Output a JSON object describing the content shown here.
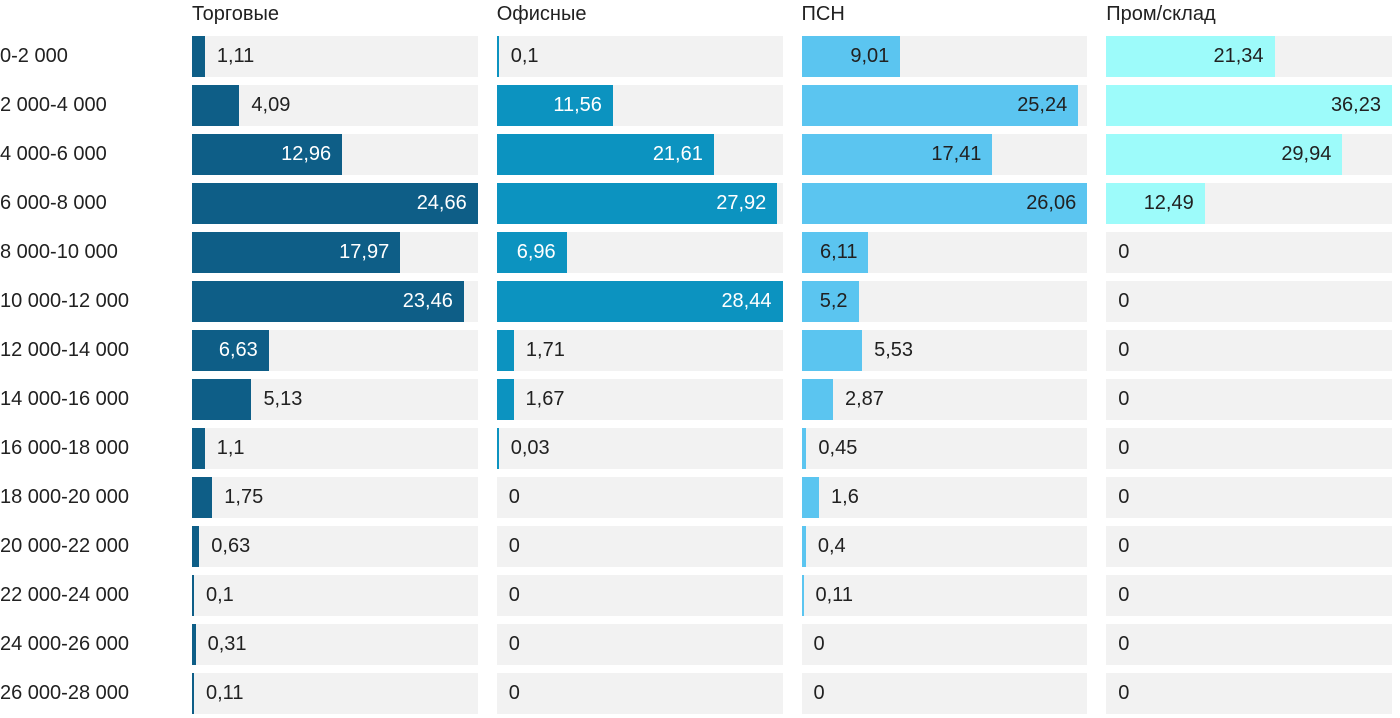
{
  "chart_data": {
    "type": "bar",
    "orientation": "horizontal",
    "title": "",
    "xlabel": "",
    "ylabel": "",
    "value_labels": "on",
    "decimal_separator": ",",
    "x_scaling": "each column scaled independently to its own max value",
    "grid": false,
    "legend_position": "column-headers-top",
    "track_color": "#f2f2f2",
    "background_color": "#ffffff",
    "text_color": "#212121",
    "categories": [
      "0-2 000",
      "2 000-4 000",
      "4 000-6 000",
      "6 000-8 000",
      "8 000-10 000",
      "10 000-12 000",
      "12 000-14 000",
      "14 000-16 000",
      "16 000-18 000",
      "18 000-20 000",
      "20 000-22 000",
      "22 000-24 000",
      "24 000-26 000",
      "26 000-28 000"
    ],
    "series": [
      {
        "name": "Торговые",
        "color": "#0e5e87",
        "label_color_inside": "#ffffff",
        "values": [
          1.11,
          4.09,
          12.96,
          24.66,
          17.97,
          23.46,
          6.63,
          5.13,
          1.1,
          1.75,
          0.63,
          0.1,
          0.31,
          0.11
        ],
        "labels": [
          "1,11",
          "4,09",
          "12,96",
          "24,66",
          "17,97",
          "23,46",
          "6,63",
          "5,13",
          "1,1",
          "1,75",
          "0,63",
          "0,1",
          "0,31",
          "0,11"
        ]
      },
      {
        "name": "Офисные",
        "color": "#0c93c0",
        "label_color_inside": "#ffffff",
        "values": [
          0.1,
          11.56,
          21.61,
          27.92,
          6.96,
          28.44,
          1.71,
          1.67,
          0.03,
          0,
          0,
          0,
          0,
          0
        ],
        "labels": [
          "0,1",
          "11,56",
          "21,61",
          "27,92",
          "6,96",
          "28,44",
          "1,71",
          "1,67",
          "0,03",
          "0",
          "0",
          "0",
          "0",
          "0"
        ]
      },
      {
        "name": "ПСН",
        "color": "#5bc5f0",
        "label_color_inside": "#212121",
        "values": [
          9.01,
          25.24,
          17.41,
          26.06,
          6.11,
          5.2,
          5.53,
          2.87,
          0.45,
          1.6,
          0.4,
          0.11,
          0,
          0
        ],
        "labels": [
          "9,01",
          "25,24",
          "17,41",
          "26,06",
          "6,11",
          "5,2",
          "5,53",
          "2,87",
          "0,45",
          "1,6",
          "0,4",
          "0,11",
          "0",
          "0"
        ]
      },
      {
        "name": "Пром/склад",
        "color": "#9dfbfa",
        "label_color_inside": "#212121",
        "values": [
          21.34,
          36.23,
          29.94,
          12.49,
          0,
          0,
          0,
          0,
          0,
          0,
          0,
          0,
          0,
          0
        ],
        "labels": [
          "21,34",
          "36,23",
          "29,94",
          "12,49",
          "0",
          "0",
          "0",
          "0",
          "0",
          "0",
          "0",
          "0",
          "0",
          "0"
        ]
      }
    ]
  }
}
